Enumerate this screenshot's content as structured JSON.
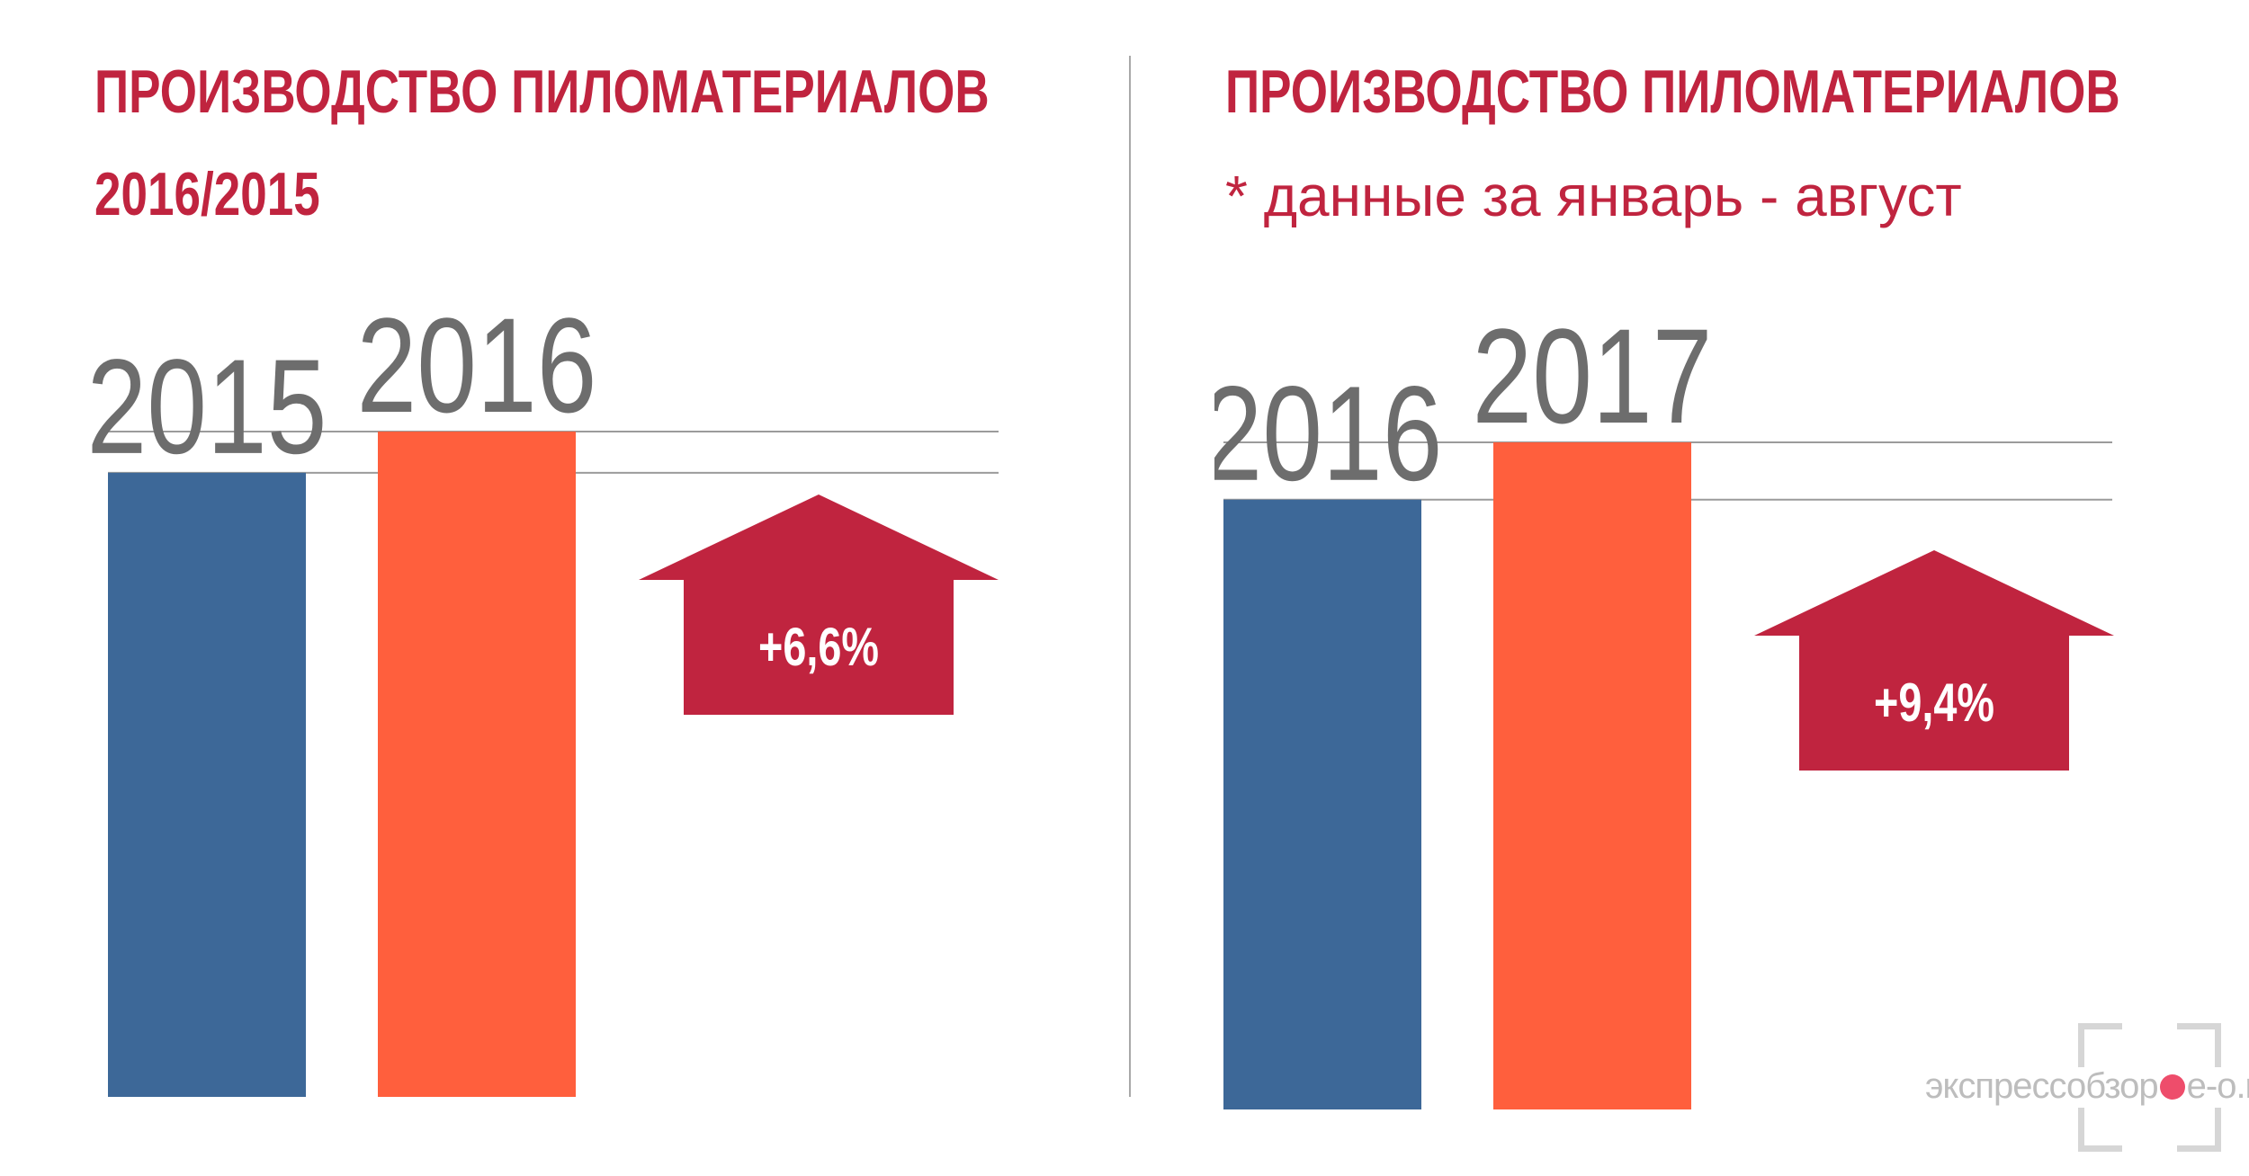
{
  "colors": {
    "title": "#c0243f",
    "bar_prev": "#3d6898",
    "bar_curr": "#ff5f3d",
    "arrow": "#c0243f",
    "year_label": "#6d6d6d",
    "gridline": "#9b9b9b",
    "divider": "#a8a8a8",
    "arrow_text": "#ffffff",
    "watermark": "#bdbdbd",
    "watermark_dot": "#ee4d6b"
  },
  "watermark": {
    "text_before": "экспрессобзор",
    "text_after": "e-o.ru",
    "icon": "camera-frame-icon"
  },
  "chart_data": [
    {
      "type": "bar",
      "title": "ПРОИЗВОДСТВО ПИЛОМАТЕРИАЛОВ",
      "subtitle": "2016/2015",
      "categories": [
        "2015",
        "2016"
      ],
      "values": [
        100,
        106.6
      ],
      "change_label": "+6,6%",
      "ylim": [
        0,
        106.6
      ],
      "axis_visible": false
    },
    {
      "type": "bar",
      "title": "ПРОИЗВОДСТВО ПИЛОМАТЕРИАЛОВ",
      "subtitle": "* данные за январь - август",
      "categories": [
        "2016",
        "2017"
      ],
      "values": [
        100,
        109.4
      ],
      "change_label": "+9,4%",
      "ylim": [
        0,
        109.4
      ],
      "axis_visible": false
    }
  ]
}
